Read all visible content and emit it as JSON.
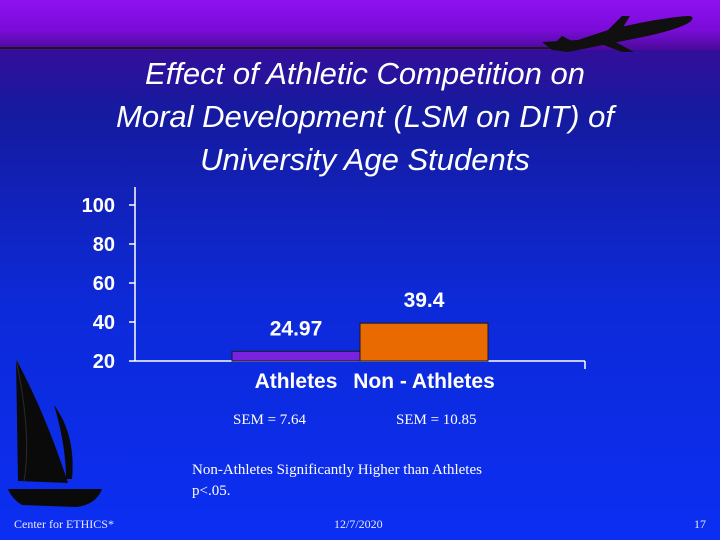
{
  "slide": {
    "title": "Effect of Athletic Competition on\nMoral Development (LSM on DIT) of\nUniversity Age Students",
    "sem_athletes": "SEM = 7.64",
    "sem_non_athletes": "SEM = 10.85",
    "note": "Non-Athletes Significantly Higher than Athletes\np<.05.",
    "footer_left": "Center for ETHICS*",
    "footer_date": "12/7/2020",
    "footer_page": "17"
  },
  "chart_data": {
    "type": "bar",
    "categories": [
      "Athletes",
      "Non - Athletes"
    ],
    "values": [
      24.97,
      39.4
    ],
    "data_labels": [
      "24.97",
      "39.4"
    ],
    "yticks": [
      "100",
      "80",
      "60",
      "40",
      "20"
    ],
    "ylim": [
      20,
      100
    ],
    "colors": [
      "#7a22e0",
      "#e86a00"
    ],
    "grid": false
  }
}
